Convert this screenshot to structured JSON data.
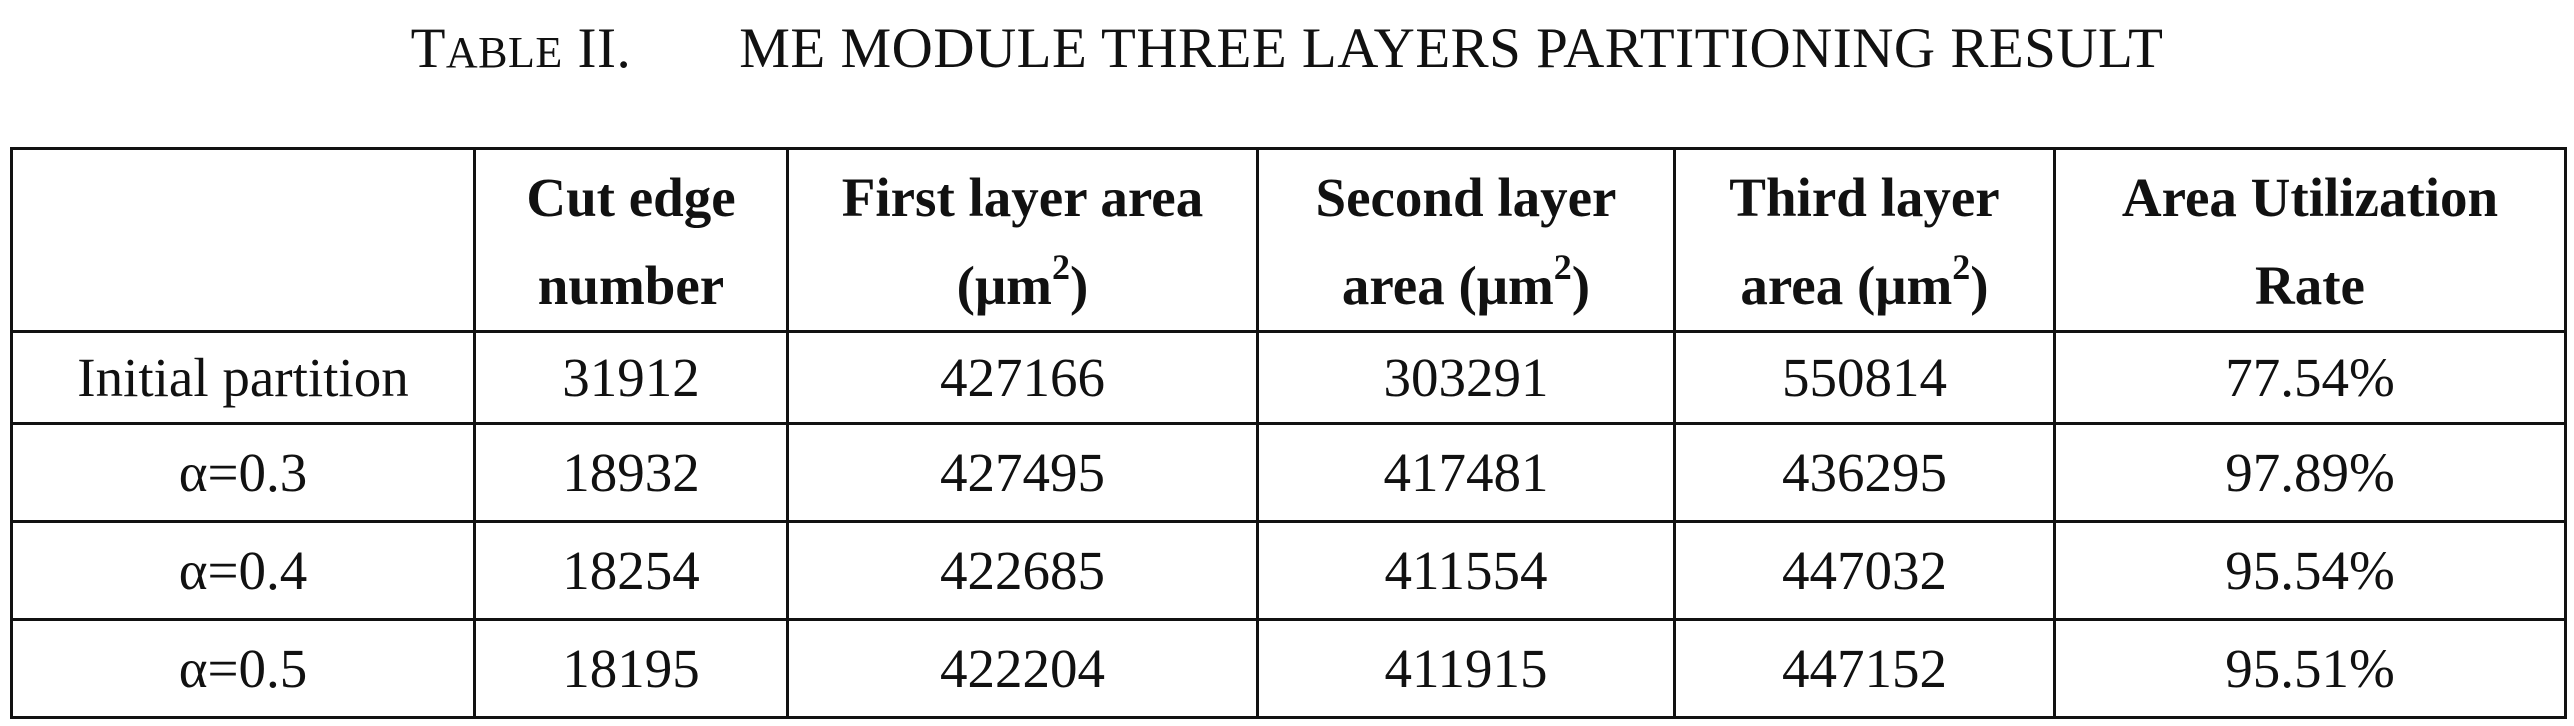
{
  "caption": {
    "label_initial": "T",
    "label_rest": "ABLE",
    "label_number": "II.",
    "title": "ME MODULE THREE LAYERS PARTITIONING RESULT"
  },
  "table": {
    "header_corner": "",
    "headers": [
      {
        "line1": "Cut edge",
        "line2": "number",
        "sup": ""
      },
      {
        "line1": "First layer area",
        "line2": "(μm",
        "sup": "2",
        "after": ")"
      },
      {
        "line1": "Second layer",
        "line2": "area (μm",
        "sup": "2",
        "after": ")"
      },
      {
        "line1": "Third layer",
        "line2": "area (μm",
        "sup": "2",
        "after": ")"
      },
      {
        "line1": "Area Utilization",
        "line2": "Rate",
        "sup": ""
      }
    ],
    "rows": [
      {
        "label": "Initial partition",
        "values": [
          "31912",
          "427166",
          "303291",
          "550814",
          "77.54%"
        ]
      },
      {
        "label": "α=0.3",
        "values": [
          "18932",
          "427495",
          "417481",
          "436295",
          "97.89%"
        ]
      },
      {
        "label": "α=0.4",
        "values": [
          "18254",
          "422685",
          "411554",
          "447032",
          "95.54%"
        ]
      },
      {
        "label": "α=0.5",
        "values": [
          "18195",
          "422204",
          "411915",
          "447152",
          "95.51%"
        ]
      }
    ]
  }
}
